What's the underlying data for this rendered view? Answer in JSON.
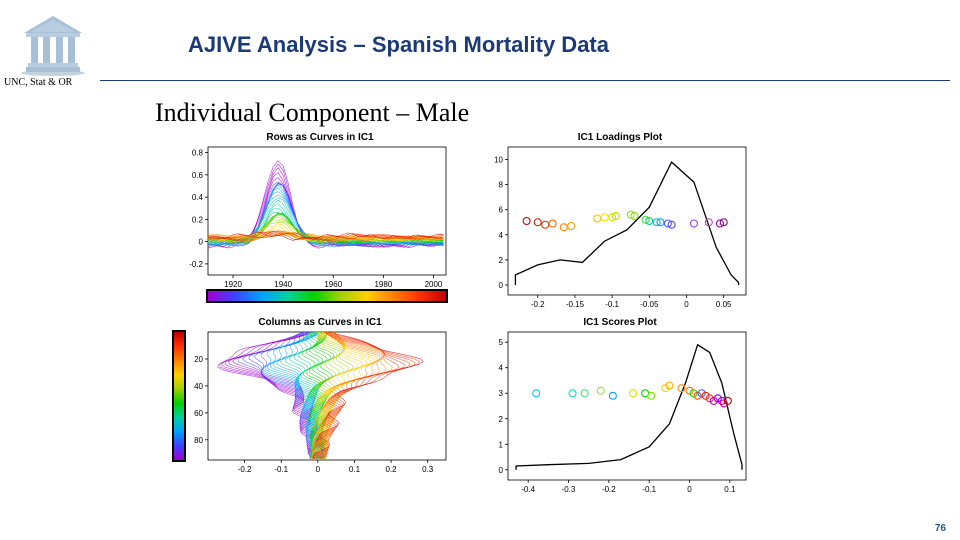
{
  "header": {
    "title": "AJIVE Analysis – Spanish Mortality Data",
    "dept": "UNC, Stat & OR",
    "section_title": "Individual Component – Male",
    "title_color": "#1a3a7a",
    "title_fontsize": 22,
    "section_fontsize": 26
  },
  "logo": {
    "roof_color": "#9fb8d0",
    "pillar_color": "#a8c0d7",
    "shadow_color": "#6a8aa8"
  },
  "page_number": "76",
  "rainbow_palette": [
    "#a000d0",
    "#4040ff",
    "#00a0ff",
    "#00d0a0",
    "#00d000",
    "#a0d000",
    "#ffd000",
    "#ff8000",
    "#ff3000",
    "#c00000"
  ],
  "panel_a": {
    "title": "Rows as Curves in IC1",
    "xlim": [
      1910,
      2005
    ],
    "ylim": [
      -0.3,
      0.85
    ],
    "xticks": [
      1920,
      1940,
      1960,
      1980,
      2000
    ],
    "yticks": [
      -0.2,
      0,
      0.2,
      0.4,
      0.6,
      0.8
    ],
    "box_color": "#000000",
    "n_curves": 40,
    "peak_year": 1938,
    "peak_y_max": 0.75,
    "baseline_noise": 0.06,
    "colorbar_bg": "#000000"
  },
  "panel_b": {
    "title": "IC1 Loadings Plot",
    "xlim": [
      -0.24,
      0.08
    ],
    "ylim": [
      -0.8,
      11
    ],
    "xticks": [
      -0.2,
      -0.15,
      -0.1,
      -0.05,
      0,
      0.05
    ],
    "yticks": [
      0,
      2,
      4,
      6,
      8,
      10
    ],
    "density_color": "#000000",
    "density": [
      [
        -0.23,
        0.8
      ],
      [
        -0.2,
        1.6
      ],
      [
        -0.17,
        2.0
      ],
      [
        -0.14,
        1.8
      ],
      [
        -0.11,
        3.5
      ],
      [
        -0.08,
        4.4
      ],
      [
        -0.05,
        6.2
      ],
      [
        -0.02,
        9.8
      ],
      [
        0.01,
        8.2
      ],
      [
        0.04,
        3.0
      ],
      [
        0.06,
        0.8
      ],
      [
        0.07,
        0.2
      ]
    ],
    "points": [
      {
        "x": -0.215,
        "y": 5.1,
        "c": "#c00000"
      },
      {
        "x": -0.2,
        "y": 5.0,
        "c": "#d02000"
      },
      {
        "x": -0.19,
        "y": 4.8,
        "c": "#e04000"
      },
      {
        "x": -0.18,
        "y": 4.9,
        "c": "#ff6000"
      },
      {
        "x": -0.165,
        "y": 4.6,
        "c": "#ff8000"
      },
      {
        "x": -0.155,
        "y": 4.7,
        "c": "#ffa000"
      },
      {
        "x": -0.12,
        "y": 5.3,
        "c": "#ffc000"
      },
      {
        "x": -0.11,
        "y": 5.4,
        "c": "#ffe000"
      },
      {
        "x": -0.1,
        "y": 5.4,
        "c": "#e0e000"
      },
      {
        "x": -0.095,
        "y": 5.5,
        "c": "#c0e000"
      },
      {
        "x": -0.075,
        "y": 5.6,
        "c": "#a0e000"
      },
      {
        "x": -0.07,
        "y": 5.5,
        "c": "#80e000"
      },
      {
        "x": -0.055,
        "y": 5.2,
        "c": "#40e040"
      },
      {
        "x": -0.05,
        "y": 5.1,
        "c": "#00d080"
      },
      {
        "x": -0.04,
        "y": 5.0,
        "c": "#00c0c0"
      },
      {
        "x": -0.035,
        "y": 5.0,
        "c": "#00a0ff"
      },
      {
        "x": -0.025,
        "y": 4.9,
        "c": "#4060ff"
      },
      {
        "x": -0.02,
        "y": 4.8,
        "c": "#6040ff"
      },
      {
        "x": 0.01,
        "y": 4.9,
        "c": "#a040e0"
      },
      {
        "x": 0.03,
        "y": 5.0,
        "c": "#c040c0"
      },
      {
        "x": 0.045,
        "y": 4.9,
        "c": "#a000a0"
      },
      {
        "x": 0.05,
        "y": 5.0,
        "c": "#800080"
      }
    ],
    "marker_radius": 3.5
  },
  "panel_c": {
    "title": "Columns as Curves in IC1",
    "xlim": [
      -0.3,
      0.35
    ],
    "ylim": [
      0,
      95
    ],
    "xticks": [
      -0.2,
      -0.1,
      0,
      0.1,
      0.2,
      0.3
    ],
    "yticks": [
      20,
      40,
      60,
      80
    ],
    "y_reversed": true,
    "n_curves": 50,
    "colorbar_bg": "#000000"
  },
  "panel_d": {
    "title": "IC1 Scores Plot",
    "xlim": [
      -0.45,
      0.14
    ],
    "ylim": [
      -0.4,
      5.4
    ],
    "xticks": [
      -0.4,
      -0.3,
      -0.2,
      -0.1,
      0,
      0.1
    ],
    "yticks": [
      0,
      1,
      2,
      3,
      4,
      5
    ],
    "density_color": "#000000",
    "density": [
      [
        -0.43,
        0.15
      ],
      [
        -0.35,
        0.2
      ],
      [
        -0.25,
        0.25
      ],
      [
        -0.17,
        0.4
      ],
      [
        -0.1,
        0.9
      ],
      [
        -0.05,
        1.8
      ],
      [
        -0.01,
        3.4
      ],
      [
        0.02,
        4.9
      ],
      [
        0.05,
        4.6
      ],
      [
        0.08,
        3.4
      ],
      [
        0.11,
        1.4
      ],
      [
        0.13,
        0.2
      ]
    ],
    "points": [
      {
        "x": -0.38,
        "y": 3.0,
        "c": "#00c0ff"
      },
      {
        "x": -0.29,
        "y": 3.0,
        "c": "#00e0c0"
      },
      {
        "x": -0.26,
        "y": 3.0,
        "c": "#40e080"
      },
      {
        "x": -0.22,
        "y": 3.1,
        "c": "#a0e040"
      },
      {
        "x": -0.19,
        "y": 2.9,
        "c": "#00a0ff"
      },
      {
        "x": -0.14,
        "y": 3.0,
        "c": "#e0e000"
      },
      {
        "x": -0.11,
        "y": 3.0,
        "c": "#00d000"
      },
      {
        "x": -0.095,
        "y": 2.9,
        "c": "#80e000"
      },
      {
        "x": -0.06,
        "y": 3.2,
        "c": "#ffd000"
      },
      {
        "x": -0.05,
        "y": 3.3,
        "c": "#ffb000"
      },
      {
        "x": -0.02,
        "y": 3.2,
        "c": "#ff9000"
      },
      {
        "x": 0.0,
        "y": 3.1,
        "c": "#ff7000"
      },
      {
        "x": 0.01,
        "y": 3.0,
        "c": "#00e000"
      },
      {
        "x": 0.02,
        "y": 2.9,
        "c": "#ff5000"
      },
      {
        "x": 0.03,
        "y": 3.0,
        "c": "#4060ff"
      },
      {
        "x": 0.04,
        "y": 2.9,
        "c": "#e03000"
      },
      {
        "x": 0.05,
        "y": 2.8,
        "c": "#ff3040"
      },
      {
        "x": 0.06,
        "y": 2.7,
        "c": "#c000c0"
      },
      {
        "x": 0.07,
        "y": 2.8,
        "c": "#a000e0"
      },
      {
        "x": 0.08,
        "y": 2.7,
        "c": "#8000ff"
      },
      {
        "x": 0.085,
        "y": 2.6,
        "c": "#ff0080"
      },
      {
        "x": 0.095,
        "y": 2.7,
        "c": "#c00000"
      }
    ],
    "marker_radius": 3.5
  }
}
